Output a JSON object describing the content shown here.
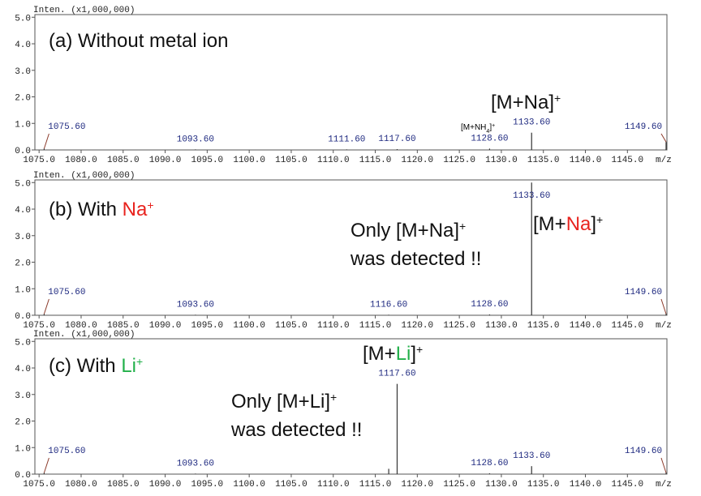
{
  "chart_data": [
    {
      "type": "stem",
      "y_label": "Inten. (x1,000,000)",
      "x_label": "m/z",
      "title": "(a) Without metal ion",
      "annotations": [
        [
          "[M+Na]",
          "+"
        ],
        [
          "[M+NH",
          "4",
          "]",
          "+"
        ]
      ],
      "xlim": [
        1074.5,
        1149.7
      ],
      "ylim": [
        0,
        5.1
      ],
      "xticks": [
        {
          "value": 1075,
          "label": "1075.0"
        },
        {
          "value": 1080,
          "label": "1080.0"
        },
        {
          "value": 1085,
          "label": "1085.0"
        },
        {
          "value": 1090,
          "label": "1090.0"
        },
        {
          "value": 1095,
          "label": "1095.0"
        },
        {
          "value": 1100,
          "label": "1100.0"
        },
        {
          "value": 1105,
          "label": "1105.0"
        },
        {
          "value": 1110,
          "label": "1110.0"
        },
        {
          "value": 1115,
          "label": "1115.0"
        },
        {
          "value": 1120,
          "label": "1120.0"
        },
        {
          "value": 1125,
          "label": "1125.0"
        },
        {
          "value": 1130,
          "label": "1130.0"
        },
        {
          "value": 1135,
          "label": "1135.0"
        },
        {
          "value": 1140,
          "label": "1140.0"
        },
        {
          "value": 1145,
          "label": "1145.0"
        }
      ],
      "yticks": [
        {
          "value": 0,
          "label": "0.0"
        },
        {
          "value": 1,
          "label": "1.0"
        },
        {
          "value": 2,
          "label": "2.0"
        },
        {
          "value": 3,
          "label": "3.0"
        },
        {
          "value": 4,
          "label": "4.0"
        },
        {
          "value": 5,
          "label": "5.0"
        }
      ],
      "x": [
        1075.6,
        1093.6,
        1111.6,
        1117.6,
        1128.6,
        1133.6,
        1149.6
      ],
      "x_labels": [
        "1075.60",
        "1093.60",
        "1111.60",
        "1117.60",
        "1128.60",
        "1133.60",
        "1149.60"
      ],
      "values": [
        0.05,
        0.02,
        0.02,
        0.03,
        0.05,
        0.65,
        0.3
      ],
      "color": "#333333",
      "label_color": "#1f2a80",
      "leader_color": "#8b3a2a"
    },
    {
      "type": "stem",
      "y_label": "Inten. (x1,000,000)",
      "x_label": "m/z",
      "title": [
        "(b) With ",
        "Na",
        "+"
      ],
      "annotations": [
        [
          "Only [M+Na]",
          "+"
        ],
        "was detected !!",
        [
          "[M+",
          "Na",
          "]",
          "+"
        ]
      ],
      "highlight_color": "#e8231e",
      "xlim": [
        1074.5,
        1149.7
      ],
      "ylim": [
        0,
        5.1
      ],
      "xticks": [
        {
          "value": 1075,
          "label": "1075.0"
        },
        {
          "value": 1080,
          "label": "1080.0"
        },
        {
          "value": 1085,
          "label": "1085.0"
        },
        {
          "value": 1090,
          "label": "1090.0"
        },
        {
          "value": 1095,
          "label": "1095.0"
        },
        {
          "value": 1100,
          "label": "1100.0"
        },
        {
          "value": 1105,
          "label": "1105.0"
        },
        {
          "value": 1110,
          "label": "1110.0"
        },
        {
          "value": 1115,
          "label": "1115.0"
        },
        {
          "value": 1120,
          "label": "1120.0"
        },
        {
          "value": 1125,
          "label": "1125.0"
        },
        {
          "value": 1130,
          "label": "1130.0"
        },
        {
          "value": 1135,
          "label": "1135.0"
        },
        {
          "value": 1140,
          "label": "1140.0"
        },
        {
          "value": 1145,
          "label": "1145.0"
        }
      ],
      "yticks": [
        {
          "value": 0,
          "label": "0.0"
        },
        {
          "value": 1,
          "label": "1.0"
        },
        {
          "value": 2,
          "label": "2.0"
        },
        {
          "value": 3,
          "label": "3.0"
        },
        {
          "value": 4,
          "label": "4.0"
        },
        {
          "value": 5,
          "label": "5.0"
        }
      ],
      "x": [
        1075.6,
        1093.6,
        1116.6,
        1128.6,
        1133.6,
        1149.6
      ],
      "x_labels": [
        "1075.60",
        "1093.60",
        "1116.60",
        "1128.60",
        "1133.60",
        "1149.60"
      ],
      "values": [
        0.05,
        0.02,
        0.02,
        0.03,
        5.0,
        0.05
      ],
      "color": "#333333",
      "label_color": "#1f2a80",
      "leader_color": "#8b3a2a"
    },
    {
      "type": "stem",
      "y_label": "Inten. (x1,000,000)",
      "x_label": "m/z",
      "title": [
        "(c) With ",
        "Li",
        "+"
      ],
      "annotations": [
        [
          "[M+",
          "Li",
          "]",
          "+"
        ],
        [
          "Only [M+Li]",
          "+"
        ],
        "was detected !!"
      ],
      "highlight_color": "#22b04a",
      "xlim": [
        1074.5,
        1149.7
      ],
      "ylim": [
        0,
        5.1
      ],
      "xticks": [
        {
          "value": 1075,
          "label": "1075.0"
        },
        {
          "value": 1080,
          "label": "1080.0"
        },
        {
          "value": 1085,
          "label": "1085.0"
        },
        {
          "value": 1090,
          "label": "1090.0"
        },
        {
          "value": 1095,
          "label": "1095.0"
        },
        {
          "value": 1100,
          "label": "1100.0"
        },
        {
          "value": 1105,
          "label": "1105.0"
        },
        {
          "value": 1110,
          "label": "1110.0"
        },
        {
          "value": 1115,
          "label": "1115.0"
        },
        {
          "value": 1120,
          "label": "1120.0"
        },
        {
          "value": 1125,
          "label": "1125.0"
        },
        {
          "value": 1130,
          "label": "1130.0"
        },
        {
          "value": 1135,
          "label": "1135.0"
        },
        {
          "value": 1140,
          "label": "1140.0"
        },
        {
          "value": 1145,
          "label": "1145.0"
        }
      ],
      "yticks": [
        {
          "value": 0,
          "label": "0.0"
        },
        {
          "value": 1,
          "label": "1.0"
        },
        {
          "value": 2,
          "label": "2.0"
        },
        {
          "value": 3,
          "label": "3.0"
        },
        {
          "value": 4,
          "label": "4.0"
        },
        {
          "value": 5,
          "label": "5.0"
        }
      ],
      "x": [
        1075.6,
        1093.6,
        1116.6,
        1117.6,
        1128.6,
        1133.6,
        1149.6
      ],
      "x_labels": [
        "1075.60",
        "1093.60",
        null,
        "1117.60",
        "1128.60",
        "1133.60",
        "1149.60"
      ],
      "values": [
        0.05,
        0.02,
        0.2,
        3.4,
        0.03,
        0.3,
        0.05
      ],
      "color": "#333333",
      "label_color": "#1f2a80",
      "leader_color": "#8b3a2a"
    }
  ]
}
